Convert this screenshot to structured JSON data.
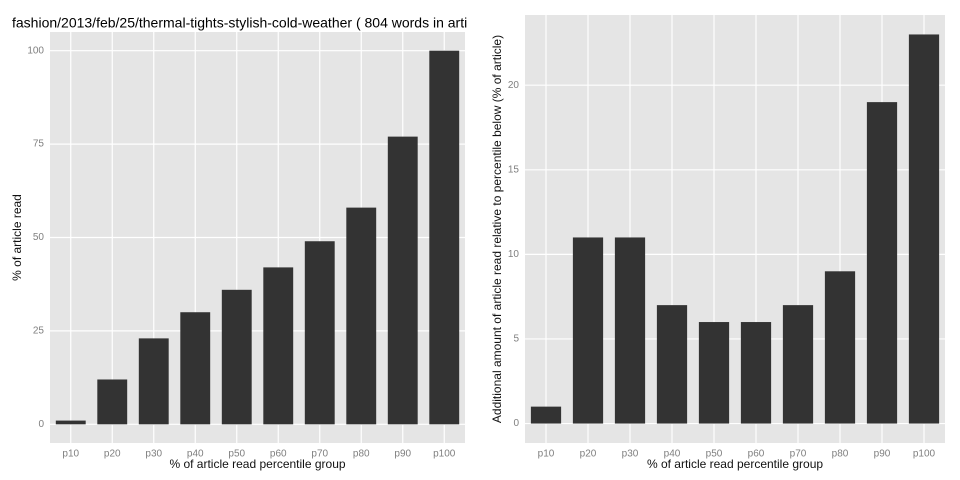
{
  "chart_data": [
    {
      "type": "bar",
      "title": "fashion/2013/feb/25/thermal-tights-stylish-cold-weather ( 804 words in arti",
      "x_label": "% of article read percentile group",
      "y_label": "% of article read",
      "categories": [
        "p10",
        "p20",
        "p30",
        "p40",
        "p50",
        "p60",
        "p70",
        "p80",
        "p90",
        "p100"
      ],
      "values": [
        1,
        12,
        23,
        30,
        36,
        42,
        49,
        58,
        77,
        100
      ],
      "color": "#333333",
      "ylim": [
        -5,
        105
      ],
      "yticks": [
        0,
        25,
        50,
        75,
        100
      ],
      "grid": true
    },
    {
      "type": "bar",
      "x_label": "% of article read percentile group",
      "y_label": "Additional amount of article read relative to percentile below (% of article)",
      "categories": [
        "p10",
        "p20",
        "p30",
        "p40",
        "p50",
        "p60",
        "p70",
        "p80",
        "p90",
        "p100"
      ],
      "values": [
        1,
        11,
        11,
        7,
        6,
        6,
        7,
        9,
        19,
        23
      ],
      "color": "#333333",
      "ylim": [
        -1.15,
        24.15
      ],
      "yticks": [
        0,
        5,
        10,
        15,
        20
      ],
      "grid": true
    }
  ]
}
